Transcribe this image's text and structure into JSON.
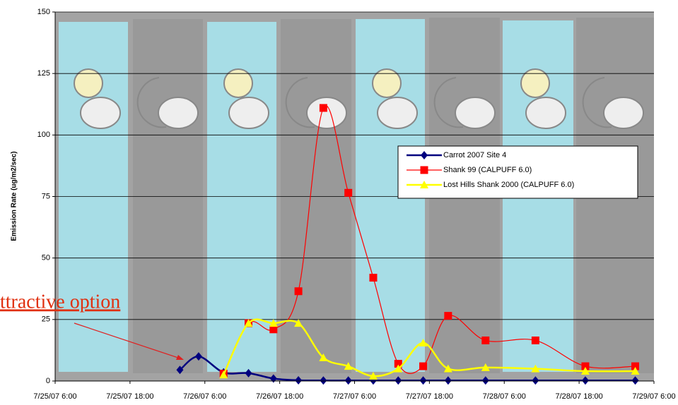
{
  "chart_data": {
    "type": "line",
    "ylabel": "Emission Rate (ug/m2/sec)",
    "annotation": "ttractive option",
    "xlim": [
      "7/25/07 6:00",
      "7/29/07 6:00"
    ],
    "xticks": [
      "7/25/07 6:00",
      "7/25/07 18:00",
      "7/26/07 6:00",
      "7/26/07 18:00",
      "7/27/07 6:00",
      "7/27/07 18:00",
      "7/28/07 6:00",
      "7/28/07 18:00",
      "7/29/07 6:00"
    ],
    "ylim": [
      0,
      150
    ],
    "yticks": [
      0,
      25,
      50,
      75,
      100,
      125,
      150
    ],
    "grid": true,
    "series": [
      {
        "name": "Carrot 2007 Site 4",
        "color": "#00007f",
        "marker": "diamond",
        "x": [
          "7/26/07 2:00",
          "7/26/07 5:00",
          "7/26/07 9:00",
          "7/26/07 13:00",
          "7/26/07 17:00",
          "7/26/07 21:00",
          "7/27/07 1:00",
          "7/27/07 5:00",
          "7/27/07 9:00",
          "7/27/07 13:00",
          "7/27/07 17:00",
          "7/27/07 21:00",
          "7/28/07 3:00",
          "7/28/07 11:00",
          "7/28/07 19:00",
          "7/29/07 3:00"
        ],
        "values": [
          4.5,
          10,
          3.5,
          3.2,
          1,
          0.3,
          0.2,
          0.2,
          0.2,
          0.2,
          0.2,
          0.2,
          0.2,
          0.2,
          0.2,
          0.2
        ]
      },
      {
        "name": "Shank 99 (CALPUFF 6.0)",
        "color": "#ff0000",
        "marker": "square",
        "x": [
          "7/26/07 9:00",
          "7/26/07 13:00",
          "7/26/07 17:00",
          "7/26/07 21:00",
          "7/27/07 1:00",
          "7/27/07 5:00",
          "7/27/07 9:00",
          "7/27/07 13:00",
          "7/27/07 17:00",
          "7/27/07 21:00",
          "7/28/07 3:00",
          "7/28/07 11:00",
          "7/28/07 19:00",
          "7/29/07 3:00"
        ],
        "values": [
          3,
          23.5,
          21,
          36.5,
          111,
          76.5,
          42,
          7,
          6,
          26.5,
          16.5,
          16.5,
          6,
          6
        ]
      },
      {
        "name": "Lost Hills Shank 2000 (CALPUFF 6.0)",
        "color": "#ffff00",
        "marker": "triangle",
        "x": [
          "7/26/07 9:00",
          "7/26/07 13:00",
          "7/26/07 17:00",
          "7/26/07 21:00",
          "7/27/07 1:00",
          "7/27/07 5:00",
          "7/27/07 9:00",
          "7/27/07 13:00",
          "7/27/07 17:00",
          "7/27/07 21:00",
          "7/28/07 3:00",
          "7/28/07 11:00",
          "7/28/07 19:00",
          "7/29/07 3:00"
        ],
        "values": [
          2.5,
          23.5,
          23.5,
          23.5,
          9.5,
          6,
          2,
          5,
          15.5,
          5,
          5.5,
          5,
          4,
          4
        ]
      }
    ]
  }
}
